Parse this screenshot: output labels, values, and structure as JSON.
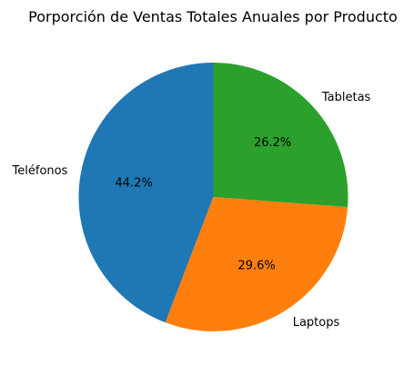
{
  "chart_data": {
    "type": "pie",
    "title": "Porporción de Ventas Totales Anuales por Producto",
    "categories": [
      "Teléfonos",
      "Laptops",
      "Tabletas"
    ],
    "values": [
      44.2,
      29.6,
      26.2
    ],
    "value_labels": [
      "44.2%",
      "29.6%",
      "26.2%"
    ],
    "colors": [
      "#1f77b4",
      "#ff7f0e",
      "#2ca02c"
    ],
    "start_angle_deg": 90,
    "direction": "counterclockwise",
    "legend": false
  }
}
